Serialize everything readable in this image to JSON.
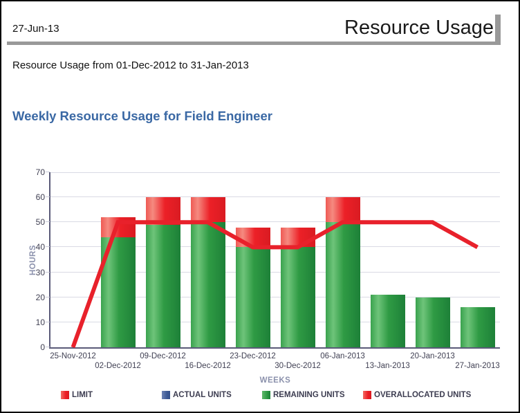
{
  "page": {
    "date": "27-Jun-13",
    "title": "Resource Usage",
    "subtitle": "Resource Usage from 01-Dec-2012 to 31-Jan-2013"
  },
  "colors": {
    "accent_red": "#E8212B",
    "bar_green": "#2E9B44",
    "actual_blue": "#3D5A96",
    "title_blue": "#3A68A4",
    "axis_title_gray_blue": "#8B91AC",
    "tick_label": "#3F3F52",
    "gridline": "#D9DAE4",
    "axis_line": "#5A5A78",
    "rule_gray": "#999999"
  },
  "chart_data": {
    "type": "bar",
    "stacked": true,
    "title": "Weekly Resource Usage for Field Engineer",
    "xlabel": "WEEKS",
    "ylabel": "HOURS",
    "ylim": [
      0,
      70
    ],
    "ytick_step": 10,
    "grid": true,
    "legend_position": "bottom",
    "categories": [
      "25-Nov-2012",
      "02-Dec-2012",
      "09-Dec-2012",
      "16-Dec-2012",
      "23-Dec-2012",
      "30-Dec-2012",
      "06-Jan-2013",
      "13-Jan-2013",
      "20-Jan-2013",
      "27-Jan-2013"
    ],
    "series": [
      {
        "name": "LIMIT",
        "render": "line",
        "color": "#E8212B",
        "values": [
          0,
          50,
          50,
          50,
          40,
          40,
          50,
          50,
          50,
          40
        ]
      },
      {
        "name": "ACTUAL UNITS",
        "render": "bar",
        "color": "#3D5A96",
        "values": [
          0,
          0,
          0,
          0,
          0,
          0,
          0,
          0,
          0,
          0
        ]
      },
      {
        "name": "REMAINING UNITS",
        "render": "bar",
        "color": "#2E9B44",
        "values": [
          0,
          44,
          49,
          50,
          40,
          40,
          50,
          21,
          20,
          16
        ]
      },
      {
        "name": "OVERALLOCATED UNITS",
        "render": "bar",
        "color": "#E8212B",
        "values": [
          0,
          8,
          11,
          10,
          8,
          8,
          10,
          0,
          0,
          0
        ]
      }
    ]
  }
}
